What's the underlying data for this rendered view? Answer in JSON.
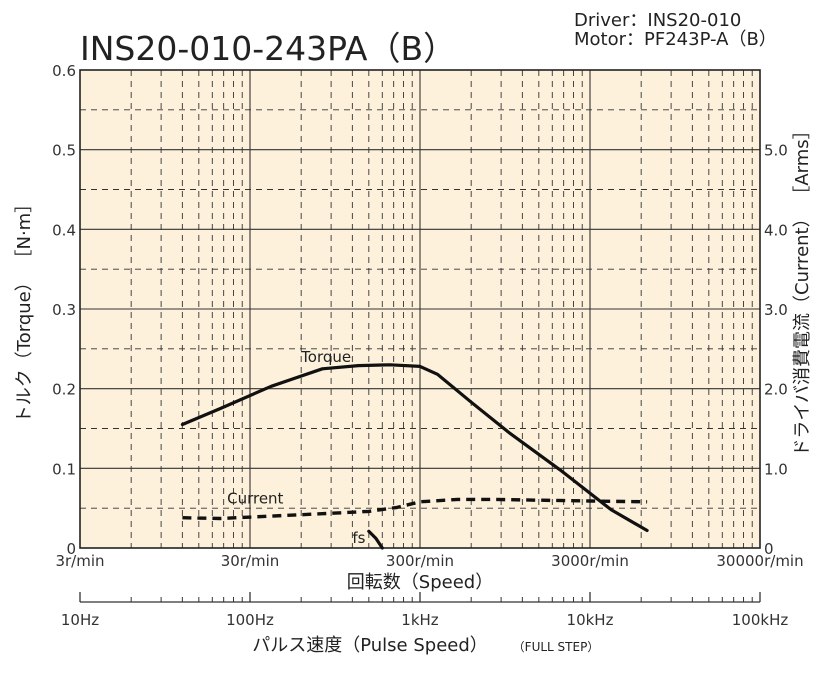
{
  "title": "INS20-010-243PA（B）",
  "driver_line": "Driver：INS20-010",
  "motor_line": "Motor：PF243P-A（B）",
  "chart_data": {
    "type": "line",
    "x_scale": "log",
    "xlabel": "回転数（Speed）",
    "x_ticks": [
      {
        "value": 3,
        "label": "3r/min"
      },
      {
        "value": 30,
        "label": "30r/min"
      },
      {
        "value": 300,
        "label": "300r/min"
      },
      {
        "value": 3000,
        "label": "3000r/min"
      },
      {
        "value": 30000,
        "label": "30000r/min"
      }
    ],
    "xlim": [
      3,
      30000
    ],
    "ylabel_left": "トルク（Torque） ［N·m］",
    "ylim_left": [
      0,
      0.6
    ],
    "y_ticks_left": [
      {
        "value": 0,
        "label": "0"
      },
      {
        "value": 0.1,
        "label": "0.1"
      },
      {
        "value": 0.2,
        "label": "0.2"
      },
      {
        "value": 0.3,
        "label": "0.3"
      },
      {
        "value": 0.4,
        "label": "0.4"
      },
      {
        "value": 0.5,
        "label": "0.5"
      },
      {
        "value": 0.6,
        "label": "0.6"
      }
    ],
    "ylabel_right": "ドライバ消費電流（Current） ［Arms］",
    "ylim_right": [
      0,
      6.0
    ],
    "y_ticks_right": [
      {
        "value": 0,
        "label": "0"
      },
      {
        "value": 1.0,
        "label": "1.0"
      },
      {
        "value": 2.0,
        "label": "2.0"
      },
      {
        "value": 3.0,
        "label": "3.0"
      },
      {
        "value": 4.0,
        "label": "4.0"
      },
      {
        "value": 5.0,
        "label": "5.0"
      }
    ],
    "secondary_axis": {
      "label": "パルス速度（Pulse Speed）",
      "label_note": "（FULL STEP）",
      "ticks": [
        {
          "value": 10,
          "label": "10Hz"
        },
        {
          "value": 100,
          "label": "100Hz"
        },
        {
          "value": 1000,
          "label": "1kHz"
        },
        {
          "value": 10000,
          "label": "10kHz"
        },
        {
          "value": 100000,
          "label": "100kHz"
        }
      ]
    },
    "grid": true,
    "series": [
      {
        "name": "Torque",
        "axis": "left",
        "style": "solid",
        "x": [
          12,
          20,
          40,
          80,
          130,
          200,
          300,
          380,
          600,
          1000,
          2000,
          4000,
          6500
        ],
        "y": [
          0.155,
          0.175,
          0.203,
          0.225,
          0.229,
          0.23,
          0.228,
          0.218,
          0.183,
          0.145,
          0.098,
          0.048,
          0.022
        ]
      },
      {
        "name": "Current",
        "axis": "right",
        "style": "dashed",
        "x": [
          12,
          20,
          40,
          80,
          150,
          220,
          300,
          500,
          800,
          1500,
          3000,
          6500
        ],
        "y": [
          0.38,
          0.37,
          0.4,
          0.43,
          0.46,
          0.51,
          0.58,
          0.61,
          0.61,
          0.6,
          0.59,
          0.58
        ]
      },
      {
        "name": "fs",
        "axis": "left",
        "style": "solid",
        "x": [
          150,
          165,
          180
        ],
        "y": [
          0.021,
          0.012,
          0.0
        ]
      }
    ],
    "annotations": [
      {
        "text": "Torque",
        "series": "Torque"
      },
      {
        "text": "Current",
        "series": "Current"
      },
      {
        "text": "fs",
        "series": "fs"
      }
    ],
    "colors": {
      "plot_background": "#fdf1dc",
      "grid": "#333333",
      "line": "#111111"
    }
  }
}
